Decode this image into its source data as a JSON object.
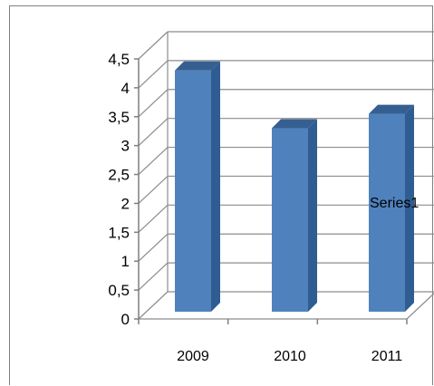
{
  "chart_data": {
    "type": "bar",
    "categories": [
      "2009",
      "2010",
      "2011"
    ],
    "series": [
      {
        "name": "Series1",
        "values": [
          4.3,
          3.3,
          3.55
        ]
      }
    ],
    "title": "",
    "xlabel": "",
    "ylabel": "",
    "ylim": [
      0,
      4.5
    ],
    "yticks": [
      "0",
      "0,5",
      "1",
      "1,5",
      "2",
      "2,5",
      "3",
      "3,5",
      "4",
      "4,5"
    ],
    "grid": true,
    "legend": "right",
    "style": "3d-column",
    "colors": {
      "front": "#4f81bd",
      "side": "#2f5c91",
      "top": "#365f91",
      "grid": "#8c8c8c"
    }
  }
}
